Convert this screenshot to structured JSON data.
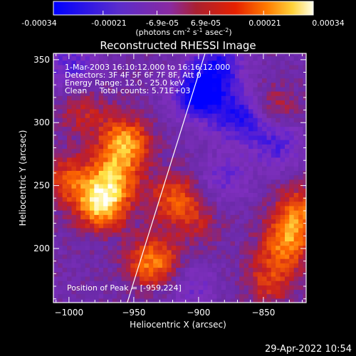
{
  "colorbar": {
    "tick_labels": [
      "-0.00034",
      "-0.00021",
      "-6.9e-05",
      "6.9e-05",
      "0.00021",
      "0.00034"
    ],
    "units_prefix": "(photons cm",
    "units_exp1": "-2",
    "units_mid": " s",
    "units_exp2": "-1",
    "units_mid2": " asec",
    "units_exp3": "-2",
    "units_suffix": ")"
  },
  "chart_data": {
    "type": "heatmap",
    "title": "Reconstructed RHESSI Image",
    "xlabel": "Heliocentric X (arcsec)",
    "ylabel": "Heliocentric Y (arcsec)",
    "xlim": [
      -1012,
      -817
    ],
    "ylim": [
      157,
      355
    ],
    "x_ticks": [
      -1000,
      -950,
      -900,
      -850
    ],
    "x_tick_labels": [
      "−1000",
      "−950",
      "−900",
      "−850"
    ],
    "y_ticks": [
      200,
      250,
      300,
      350
    ],
    "y_tick_labels": [
      "200",
      "250",
      "300",
      "350"
    ],
    "value_range": [
      -0.00034,
      0.00034
    ],
    "colormap": [
      "#0000ff",
      "#7f2fbf",
      "#6a2aa8",
      "#c81e1e",
      "#ff6a00",
      "#ffe84a",
      "#ffffff"
    ],
    "peak": [
      -959,
      224
    ],
    "hot_regions": [
      {
        "x": -975,
        "y": 235,
        "value": 0.00033
      },
      {
        "x": -957,
        "y": 285,
        "value": 0.00028
      },
      {
        "x": -935,
        "y": 190,
        "value": 0.00026
      },
      {
        "x": -965,
        "y": 258,
        "value": 0.00022
      },
      {
        "x": -918,
        "y": 240,
        "value": 0.0002
      },
      {
        "x": -1000,
        "y": 255,
        "value": 0.00018
      },
      {
        "x": -832,
        "y": 205,
        "value": 0.00024
      },
      {
        "x": -822,
        "y": 230,
        "value": 0.00021
      },
      {
        "x": -845,
        "y": 175,
        "value": 0.00016
      },
      {
        "x": -842,
        "y": 310,
        "value": 0.00013
      },
      {
        "x": -990,
        "y": 310,
        "value": 0.00012
      },
      {
        "x": -900,
        "y": 220,
        "value": 9e-05
      }
    ],
    "cold_regions": [
      {
        "x": -900,
        "y": 322,
        "value": -0.0003
      },
      {
        "x": -885,
        "y": 345,
        "value": -0.00022
      },
      {
        "x": -868,
        "y": 305,
        "value": -0.00024
      },
      {
        "x": -840,
        "y": 285,
        "value": -0.00018
      },
      {
        "x": -880,
        "y": 255,
        "value": -0.00012
      },
      {
        "x": -998,
        "y": 345,
        "value": -0.00015
      },
      {
        "x": -905,
        "y": 170,
        "value": -0.0001
      }
    ],
    "limb_line": [
      [
        -955,
        157
      ],
      [
        -895,
        355
      ]
    ],
    "annotations": {
      "time": "1-Mar-2003 16:10:12.000 to 16:16:12.000",
      "detectors": "Detectors: 3F 4F 5F 6F 7F 8F, Att 0",
      "energy": "Energy Range: 12.0 - 25.0 keV",
      "clean": "Clean     Total counts: 5.71E+03",
      "peak": "Position of Peak = [-959,224]"
    }
  },
  "timestamp": "29-Apr-2022 10:54"
}
